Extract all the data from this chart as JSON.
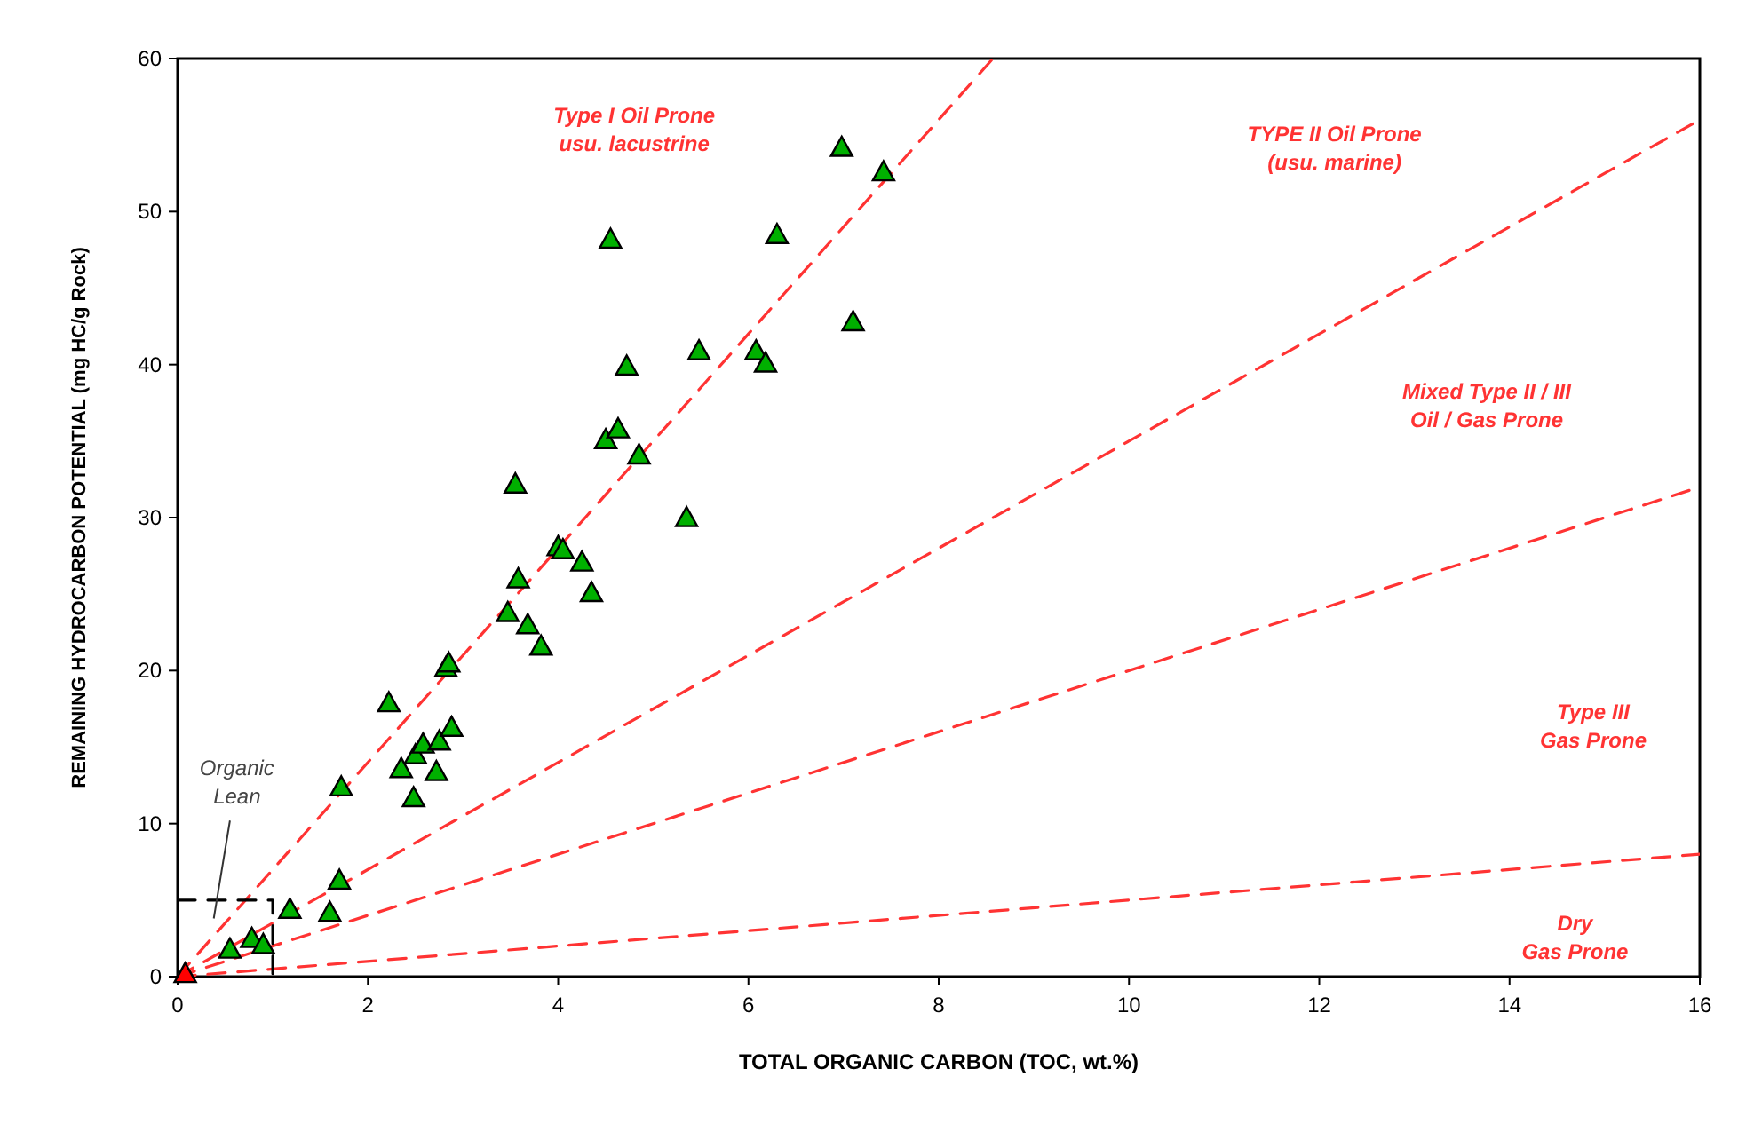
{
  "chart_data": {
    "type": "scatter",
    "xlabel": "TOTAL ORGANIC CARBON (TOC, wt.%)",
    "ylabel": "REMAINING HYDROCARBON POTENTIAL (mg HC/g Rock)",
    "xlim": [
      0,
      16
    ],
    "ylim": [
      0,
      60
    ],
    "xticks": [
      0,
      2,
      4,
      6,
      8,
      10,
      12,
      14,
      16
    ],
    "yticks": [
      0,
      10,
      20,
      30,
      40,
      50,
      60
    ],
    "grid": false,
    "series": [
      {
        "type": "line",
        "color": "#ff3333",
        "line_style": "dashed",
        "x": [
          0,
          8.57
        ],
        "values": [
          0,
          60
        ]
      },
      {
        "type": "line",
        "color": "#ff3333",
        "line_style": "dashed",
        "x": [
          0,
          16
        ],
        "values": [
          0,
          56
        ]
      },
      {
        "type": "line",
        "color": "#ff3333",
        "line_style": "dashed",
        "x": [
          0,
          16
        ],
        "values": [
          0,
          32
        ]
      },
      {
        "type": "line",
        "color": "#ff3333",
        "line_style": "dashed",
        "x": [
          0,
          16
        ],
        "values": [
          0,
          8
        ]
      },
      {
        "type": "line",
        "color": "#000000",
        "line_style": "dashed",
        "x": [
          0,
          1,
          1
        ],
        "values": [
          5,
          5,
          0
        ]
      },
      {
        "color": "#ff0000",
        "marker": "triangle",
        "x": [
          0.08
        ],
        "values": [
          0.2
        ]
      },
      {
        "color": "#00b000",
        "marker": "triangle",
        "x": [
          0.55,
          0.78,
          0.9,
          1.18,
          1.6,
          1.7,
          1.72,
          2.22,
          2.35,
          2.48,
          2.5,
          2.58,
          2.72,
          2.75,
          2.82,
          2.85,
          2.88,
          3.47,
          3.55,
          3.58,
          3.68,
          3.82,
          4.0,
          4.05,
          4.25,
          4.35,
          4.5,
          4.55,
          4.63,
          4.72,
          4.85,
          5.35,
          5.48,
          6.08,
          6.18,
          6.3,
          6.98,
          7.1,
          7.42
        ],
        "values": [
          1.8,
          2.5,
          2.1,
          4.4,
          4.2,
          6.3,
          12.4,
          17.9,
          13.6,
          11.7,
          14.5,
          15.2,
          13.4,
          15.4,
          20.2,
          20.5,
          16.3,
          23.8,
          32.2,
          26.0,
          23.0,
          21.6,
          28.1,
          27.9,
          27.1,
          25.1,
          35.1,
          48.2,
          35.8,
          39.9,
          34.1,
          30.0,
          40.9,
          40.9,
          40.1,
          48.5,
          54.2,
          42.8,
          52.6
        ]
      }
    ],
    "annotations": [
      "Type I Oil Prone\nusu. lacustrine",
      "TYPE II Oil Prone\n(usu. marine)",
      "Mixed Type II / III\nOil / Gas Prone",
      "Type III\nGas Prone",
      "Dry\nGas Prone",
      "Organic\nLean"
    ]
  }
}
